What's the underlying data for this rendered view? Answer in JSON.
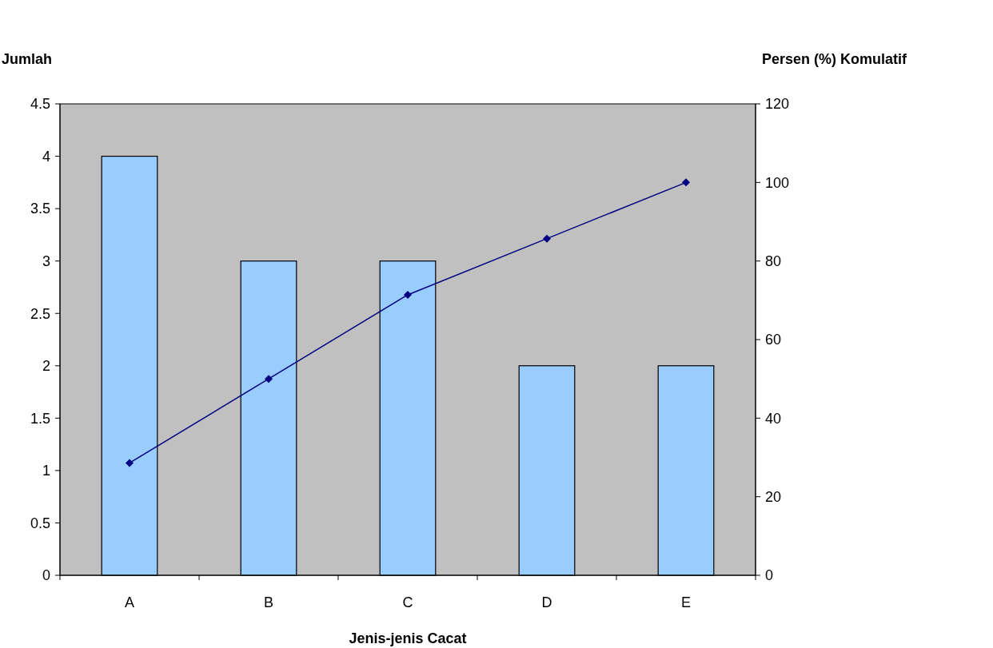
{
  "chart_data": {
    "type": "bar",
    "xlabel": "Jenis-jenis Cacat",
    "ylabel": "Jumlah",
    "y2label": "Persen (%) Komulatif",
    "categories": [
      "A",
      "B",
      "C",
      "D",
      "E"
    ],
    "series": [
      {
        "color": "#99ccff",
        "values": [
          4,
          3,
          3,
          2,
          2
        ]
      },
      {
        "type": "line",
        "axis": "y2",
        "color": "#000080",
        "values": [
          28.6,
          50,
          71.4,
          85.7,
          100
        ]
      }
    ],
    "ylim": [
      0,
      4.5
    ],
    "yticks": [
      0,
      0.5,
      1,
      1.5,
      2,
      2.5,
      3,
      3.5,
      4,
      4.5
    ],
    "y2lim": [
      0,
      120
    ],
    "y2ticks": [
      0,
      20,
      40,
      60,
      80,
      100,
      120
    ],
    "marker": "diamond",
    "line_style": "solid",
    "grid": false
  }
}
